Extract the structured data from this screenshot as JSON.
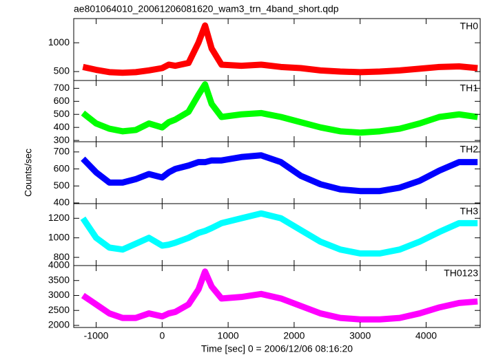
{
  "chart_data": [
    {
      "type": "line",
      "title": "ae801064010_20061206081620_wam3_trn_4band_short.qdp",
      "xlim": [
        -1340,
        4820
      ],
      "ylim": [
        345,
        1420
      ],
      "yticks": [
        500,
        1000
      ],
      "series": [
        {
          "name": "TH0",
          "color": "#ff0000",
          "x": [
            -1200,
            -1000,
            -800,
            -600,
            -400,
            -200,
            0,
            100,
            200,
            400,
            550,
            650,
            750,
            900,
            1200,
            1500,
            1800,
            2100,
            2400,
            2700,
            3000,
            3300,
            3600,
            3900,
            4200,
            4500,
            4780
          ],
          "values": [
            580,
            530,
            490,
            480,
            490,
            520,
            560,
            620,
            600,
            650,
            1000,
            1300,
            900,
            620,
            600,
            620,
            580,
            560,
            520,
            500,
            490,
            500,
            520,
            550,
            580,
            590,
            560
          ]
        }
      ]
    },
    {
      "type": "line",
      "xlim": [
        -1340,
        4820
      ],
      "ylim": [
        290,
        760
      ],
      "yticks": [
        300,
        400,
        500,
        600,
        700
      ],
      "series": [
        {
          "name": "TH1",
          "color": "#00ff00",
          "x": [
            -1200,
            -1000,
            -800,
            -600,
            -400,
            -200,
            0,
            100,
            200,
            400,
            550,
            650,
            750,
            900,
            1200,
            1500,
            1800,
            2100,
            2400,
            2700,
            3000,
            3300,
            3600,
            3900,
            4200,
            4500,
            4780
          ],
          "values": [
            510,
            430,
            390,
            370,
            380,
            430,
            400,
            440,
            460,
            520,
            650,
            730,
            580,
            480,
            500,
            510,
            480,
            440,
            400,
            370,
            360,
            370,
            390,
            430,
            480,
            500,
            480
          ]
        }
      ]
    },
    {
      "type": "line",
      "ylabel": "Counts/sec",
      "xlim": [
        -1340,
        4820
      ],
      "ylim": [
        396,
        760
      ],
      "yticks": [
        400,
        500,
        600,
        700
      ],
      "series": [
        {
          "name": "TH2",
          "color": "#0000ff",
          "x": [
            -1200,
            -1000,
            -800,
            -600,
            -400,
            -200,
            0,
            100,
            200,
            400,
            550,
            650,
            750,
            900,
            1200,
            1500,
            1800,
            2100,
            2400,
            2700,
            3000,
            3300,
            3600,
            3900,
            4200,
            4500,
            4780
          ],
          "values": [
            660,
            580,
            520,
            520,
            540,
            570,
            550,
            580,
            600,
            620,
            640,
            640,
            650,
            650,
            670,
            680,
            640,
            560,
            510,
            480,
            470,
            470,
            490,
            530,
            590,
            640,
            640
          ]
        }
      ]
    },
    {
      "type": "line",
      "xlim": [
        -1340,
        4820
      ],
      "ylim": [
        716,
        1350
      ],
      "yticks": [
        800,
        1000,
        1200
      ],
      "series": [
        {
          "name": "TH3",
          "color": "#00ffff",
          "x": [
            -1200,
            -1000,
            -800,
            -600,
            -400,
            -200,
            0,
            100,
            200,
            400,
            550,
            650,
            750,
            900,
            1200,
            1500,
            1800,
            2100,
            2400,
            2700,
            3000,
            3300,
            3600,
            3900,
            4200,
            4500,
            4780
          ],
          "values": [
            1200,
            1000,
            900,
            880,
            940,
            1000,
            920,
            930,
            950,
            1000,
            1050,
            1070,
            1100,
            1150,
            1200,
            1250,
            1200,
            1080,
            960,
            880,
            840,
            840,
            880,
            960,
            1060,
            1150,
            1150
          ]
        }
      ]
    },
    {
      "type": "line",
      "xlabel": "Time [sec] 0 = 2006/12/06 08:16:20",
      "xlim": [
        -1340,
        4820
      ],
      "ylim": [
        1930,
        4000
      ],
      "yticks": [
        2000,
        2500,
        3000,
        3500,
        4000
      ],
      "xticks": [
        -1000,
        0,
        1000,
        2000,
        3000,
        4000
      ],
      "series": [
        {
          "name": "TH0123",
          "color": "#ff00ff",
          "x": [
            -1200,
            -1000,
            -800,
            -600,
            -400,
            -200,
            0,
            100,
            200,
            400,
            550,
            650,
            750,
            900,
            1200,
            1500,
            1800,
            2100,
            2400,
            2700,
            3000,
            3300,
            3600,
            3900,
            4200,
            4500,
            4780
          ],
          "values": [
            3000,
            2700,
            2400,
            2250,
            2250,
            2400,
            2300,
            2400,
            2450,
            2700,
            3200,
            3800,
            3300,
            2900,
            2950,
            3050,
            2900,
            2650,
            2400,
            2250,
            2200,
            2200,
            2250,
            2400,
            2600,
            2750,
            2800
          ]
        }
      ]
    }
  ]
}
